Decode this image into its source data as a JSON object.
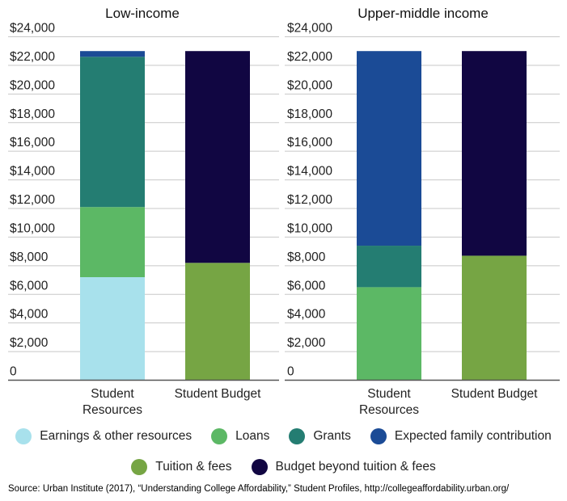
{
  "chart_data": [
    {
      "type": "bar",
      "stacked": true,
      "title": "Low-income",
      "categories": [
        "Student Resources",
        "Student Budget"
      ],
      "category_lines": [
        [
          "Student",
          "Resources"
        ],
        [
          "Student Budget"
        ]
      ],
      "ylim": [
        0,
        24000
      ],
      "yticks": [
        0,
        2000,
        4000,
        6000,
        8000,
        10000,
        12000,
        14000,
        16000,
        18000,
        20000,
        22000,
        24000
      ],
      "ytick_labels": [
        "0",
        "$2,000",
        "$4,000",
        "$6,000",
        "$8,000",
        "$10,000",
        "$12,000",
        "$14,000",
        "$16,000",
        "$18,000",
        "$20,000",
        "$22,000",
        "$24,000"
      ],
      "grid": true,
      "series": [
        {
          "name": "Earnings & other resources",
          "color": "#a8e1ec",
          "values": [
            7200,
            0
          ]
        },
        {
          "name": "Loans",
          "color": "#5cb865",
          "values": [
            4900,
            0
          ]
        },
        {
          "name": "Grants",
          "color": "#247d72",
          "values": [
            10500,
            0
          ]
        },
        {
          "name": "Expected family contribution",
          "color": "#1b4b96",
          "values": [
            400,
            0
          ]
        },
        {
          "name": "Tuition & fees",
          "color": "#76a544",
          "values": [
            0,
            8200
          ]
        },
        {
          "name": "Budget beyond tuition & fees",
          "color": "#110642",
          "values": [
            0,
            14800
          ]
        }
      ]
    },
    {
      "type": "bar",
      "stacked": true,
      "title": "Upper-middle income",
      "categories": [
        "Student Resources",
        "Student Budget"
      ],
      "category_lines": [
        [
          "Student",
          "Resources"
        ],
        [
          "Student Budget"
        ]
      ],
      "ylim": [
        0,
        24000
      ],
      "yticks": [
        0,
        2000,
        4000,
        6000,
        8000,
        10000,
        12000,
        14000,
        16000,
        18000,
        20000,
        22000,
        24000
      ],
      "ytick_labels": [
        "0",
        "$2,000",
        "$4,000",
        "$6,000",
        "$8,000",
        "$10,000",
        "$12,000",
        "$14,000",
        "$16,000",
        "$18,000",
        "$20,000",
        "$22,000",
        "$24,000"
      ],
      "grid": true,
      "series": [
        {
          "name": "Earnings & other resources",
          "color": "#a8e1ec",
          "values": [
            0,
            0
          ]
        },
        {
          "name": "Loans",
          "color": "#5cb865",
          "values": [
            6500,
            0
          ]
        },
        {
          "name": "Grants",
          "color": "#247d72",
          "values": [
            2900,
            0
          ]
        },
        {
          "name": "Expected family contribution",
          "color": "#1b4b96",
          "values": [
            13600,
            0
          ]
        },
        {
          "name": "Tuition & fees",
          "color": "#76a544",
          "values": [
            0,
            8700
          ]
        },
        {
          "name": "Budget beyond tuition & fees",
          "color": "#110642",
          "values": [
            0,
            14300
          ]
        }
      ]
    }
  ],
  "legend": {
    "row1": [
      {
        "label": "Earnings & other resources",
        "color": "#a8e1ec"
      },
      {
        "label": "Loans",
        "color": "#5cb865"
      },
      {
        "label": "Grants",
        "color": "#247d72"
      },
      {
        "label": "Expected family contribution",
        "color": "#1b4b96"
      }
    ],
    "row2": [
      {
        "label": "Tuition & fees",
        "color": "#76a544"
      },
      {
        "label": "Budget beyond tuition & fees",
        "color": "#110642"
      }
    ]
  },
  "source": "Source: Urban Institute (2017), “Understanding College Affordability,” Student Profiles, http://collegeaffordability.urban.org/"
}
